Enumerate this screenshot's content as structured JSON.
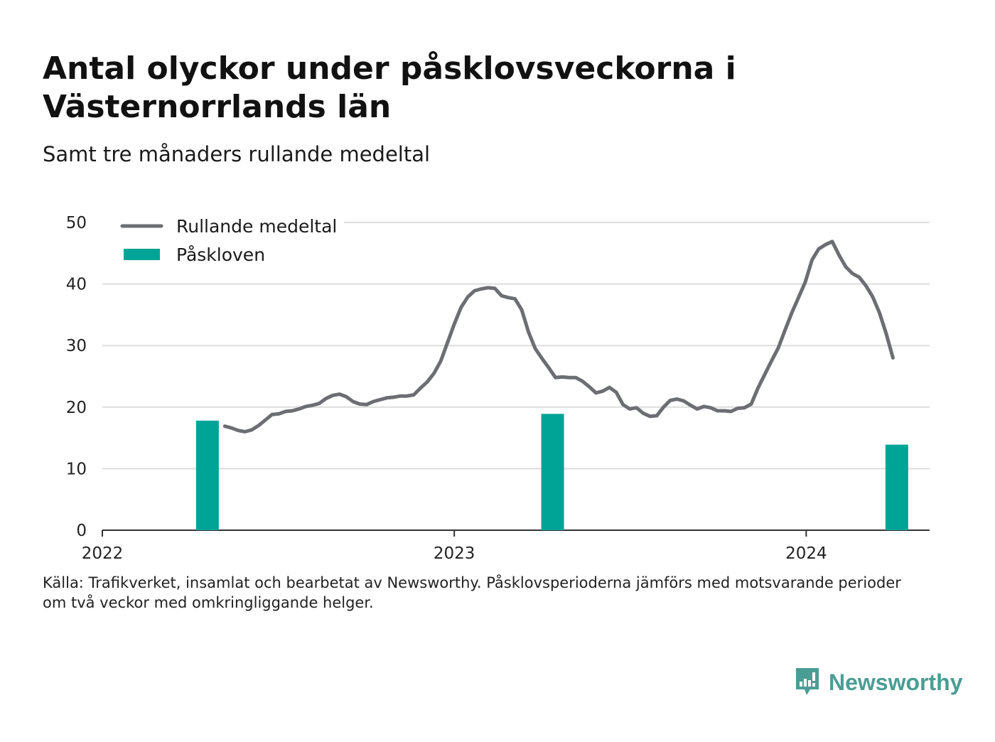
{
  "title": "Antal olyckor under påsklovsveckorna i Västernorrlands län",
  "subtitle": "Samt tre månaders rullande medeltal",
  "source_lines": [
    "Källa: Trafikverket, insamlat och bearbetat av Newsworthy. Påsklovsperioderna jämförs med motsvarande perioder",
    "om två veckor med omkringliggande helger."
  ],
  "logo": {
    "text": "Newsworthy",
    "icon": "newsworthy-logo-icon"
  },
  "colors": {
    "line": "#6d6e72",
    "bar": "#00a497",
    "grid": "#dddddd",
    "axis": "#333333",
    "brand": "#4a9d94"
  },
  "chart_data": {
    "type": "bar+line",
    "x_axis": {
      "type": "date",
      "min": "2022-01-01",
      "max": "2024-05-08",
      "ticks": [
        "2022",
        "2023",
        "2024"
      ]
    },
    "y_axis": {
      "min": 0,
      "max": 50,
      "ticks": [
        0,
        10,
        20,
        30,
        40,
        50
      ]
    },
    "grid": true,
    "legend": {
      "position": "top-left",
      "entries": [
        {
          "label": "Rullande medeltal",
          "kind": "line"
        },
        {
          "label": "Påskloven",
          "kind": "bar"
        }
      ]
    },
    "bars": {
      "name": "Påskloven",
      "points": [
        {
          "x": "2022-04-20",
          "y": 17.8
        },
        {
          "x": "2023-04-13",
          "y": 18.9
        },
        {
          "x": "2024-04-04",
          "y": 13.9
        }
      ]
    },
    "line": {
      "name": "Rullande medeltal",
      "points": [
        {
          "x": "2022-05-08",
          "y": 16.9
        },
        {
          "x": "2022-05-15",
          "y": 16.6
        },
        {
          "x": "2022-05-22",
          "y": 16.2
        },
        {
          "x": "2022-05-29",
          "y": 16.0
        },
        {
          "x": "2022-06-05",
          "y": 16.3
        },
        {
          "x": "2022-06-12",
          "y": 17.0
        },
        {
          "x": "2022-06-19",
          "y": 17.9
        },
        {
          "x": "2022-06-26",
          "y": 18.8
        },
        {
          "x": "2022-07-03",
          "y": 18.9
        },
        {
          "x": "2022-07-10",
          "y": 19.3
        },
        {
          "x": "2022-07-17",
          "y": 19.4
        },
        {
          "x": "2022-07-24",
          "y": 19.7
        },
        {
          "x": "2022-07-31",
          "y": 20.1
        },
        {
          "x": "2022-08-07",
          "y": 20.3
        },
        {
          "x": "2022-08-14",
          "y": 20.6
        },
        {
          "x": "2022-08-21",
          "y": 21.4
        },
        {
          "x": "2022-08-28",
          "y": 21.9
        },
        {
          "x": "2022-09-04",
          "y": 22.1
        },
        {
          "x": "2022-09-11",
          "y": 21.7
        },
        {
          "x": "2022-09-18",
          "y": 20.9
        },
        {
          "x": "2022-09-25",
          "y": 20.5
        },
        {
          "x": "2022-10-02",
          "y": 20.4
        },
        {
          "x": "2022-10-09",
          "y": 20.9
        },
        {
          "x": "2022-10-16",
          "y": 21.2
        },
        {
          "x": "2022-10-23",
          "y": 21.5
        },
        {
          "x": "2022-10-30",
          "y": 21.6
        },
        {
          "x": "2022-11-06",
          "y": 21.8
        },
        {
          "x": "2022-11-13",
          "y": 21.8
        },
        {
          "x": "2022-11-20",
          "y": 22.0
        },
        {
          "x": "2022-11-27",
          "y": 23.1
        },
        {
          "x": "2022-12-04",
          "y": 24.1
        },
        {
          "x": "2022-12-11",
          "y": 25.5
        },
        {
          "x": "2022-12-18",
          "y": 27.5
        },
        {
          "x": "2022-12-25",
          "y": 30.5
        },
        {
          "x": "2023-01-01",
          "y": 33.5
        },
        {
          "x": "2023-01-08",
          "y": 36.2
        },
        {
          "x": "2023-01-15",
          "y": 37.9
        },
        {
          "x": "2023-01-22",
          "y": 38.9
        },
        {
          "x": "2023-01-29",
          "y": 39.2
        },
        {
          "x": "2023-02-05",
          "y": 39.4
        },
        {
          "x": "2023-02-12",
          "y": 39.3
        },
        {
          "x": "2023-02-19",
          "y": 38.1
        },
        {
          "x": "2023-02-26",
          "y": 37.8
        },
        {
          "x": "2023-03-05",
          "y": 37.6
        },
        {
          "x": "2023-03-12",
          "y": 35.8
        },
        {
          "x": "2023-03-19",
          "y": 32.2
        },
        {
          "x": "2023-03-26",
          "y": 29.5
        },
        {
          "x": "2023-04-02",
          "y": 27.9
        },
        {
          "x": "2023-04-09",
          "y": 26.4
        },
        {
          "x": "2023-04-16",
          "y": 24.8
        },
        {
          "x": "2023-04-23",
          "y": 24.9
        },
        {
          "x": "2023-04-30",
          "y": 24.8
        },
        {
          "x": "2023-05-07",
          "y": 24.8
        },
        {
          "x": "2023-05-14",
          "y": 24.2
        },
        {
          "x": "2023-05-21",
          "y": 23.3
        },
        {
          "x": "2023-05-28",
          "y": 22.3
        },
        {
          "x": "2023-06-04",
          "y": 22.6
        },
        {
          "x": "2023-06-11",
          "y": 23.2
        },
        {
          "x": "2023-06-18",
          "y": 22.4
        },
        {
          "x": "2023-06-25",
          "y": 20.4
        },
        {
          "x": "2023-07-02",
          "y": 19.7
        },
        {
          "x": "2023-07-09",
          "y": 19.9
        },
        {
          "x": "2023-07-16",
          "y": 19.0
        },
        {
          "x": "2023-07-23",
          "y": 18.5
        },
        {
          "x": "2023-07-30",
          "y": 18.6
        },
        {
          "x": "2023-08-06",
          "y": 20.0
        },
        {
          "x": "2023-08-13",
          "y": 21.1
        },
        {
          "x": "2023-08-20",
          "y": 21.3
        },
        {
          "x": "2023-08-27",
          "y": 21.0
        },
        {
          "x": "2023-09-03",
          "y": 20.3
        },
        {
          "x": "2023-09-10",
          "y": 19.7
        },
        {
          "x": "2023-09-17",
          "y": 20.1
        },
        {
          "x": "2023-09-24",
          "y": 19.9
        },
        {
          "x": "2023-10-01",
          "y": 19.4
        },
        {
          "x": "2023-10-08",
          "y": 19.4
        },
        {
          "x": "2023-10-15",
          "y": 19.3
        },
        {
          "x": "2023-10-22",
          "y": 19.8
        },
        {
          "x": "2023-10-29",
          "y": 19.9
        },
        {
          "x": "2023-11-05",
          "y": 20.5
        },
        {
          "x": "2023-11-12",
          "y": 23.1
        },
        {
          "x": "2023-11-19",
          "y": 25.3
        },
        {
          "x": "2023-11-26",
          "y": 27.5
        },
        {
          "x": "2023-12-03",
          "y": 29.6
        },
        {
          "x": "2023-12-10",
          "y": 32.5
        },
        {
          "x": "2023-12-17",
          "y": 35.3
        },
        {
          "x": "2023-12-24",
          "y": 37.8
        },
        {
          "x": "2023-12-31",
          "y": 40.3
        },
        {
          "x": "2024-01-07",
          "y": 43.9
        },
        {
          "x": "2024-01-14",
          "y": 45.7
        },
        {
          "x": "2024-01-21",
          "y": 46.4
        },
        {
          "x": "2024-01-28",
          "y": 46.9
        },
        {
          "x": "2024-02-04",
          "y": 44.7
        },
        {
          "x": "2024-02-11",
          "y": 42.8
        },
        {
          "x": "2024-02-18",
          "y": 41.7
        },
        {
          "x": "2024-02-25",
          "y": 41.1
        },
        {
          "x": "2024-03-03",
          "y": 39.7
        },
        {
          "x": "2024-03-10",
          "y": 37.9
        },
        {
          "x": "2024-03-17",
          "y": 35.3
        },
        {
          "x": "2024-03-24",
          "y": 31.9
        },
        {
          "x": "2024-03-31",
          "y": 28.0
        }
      ]
    }
  }
}
